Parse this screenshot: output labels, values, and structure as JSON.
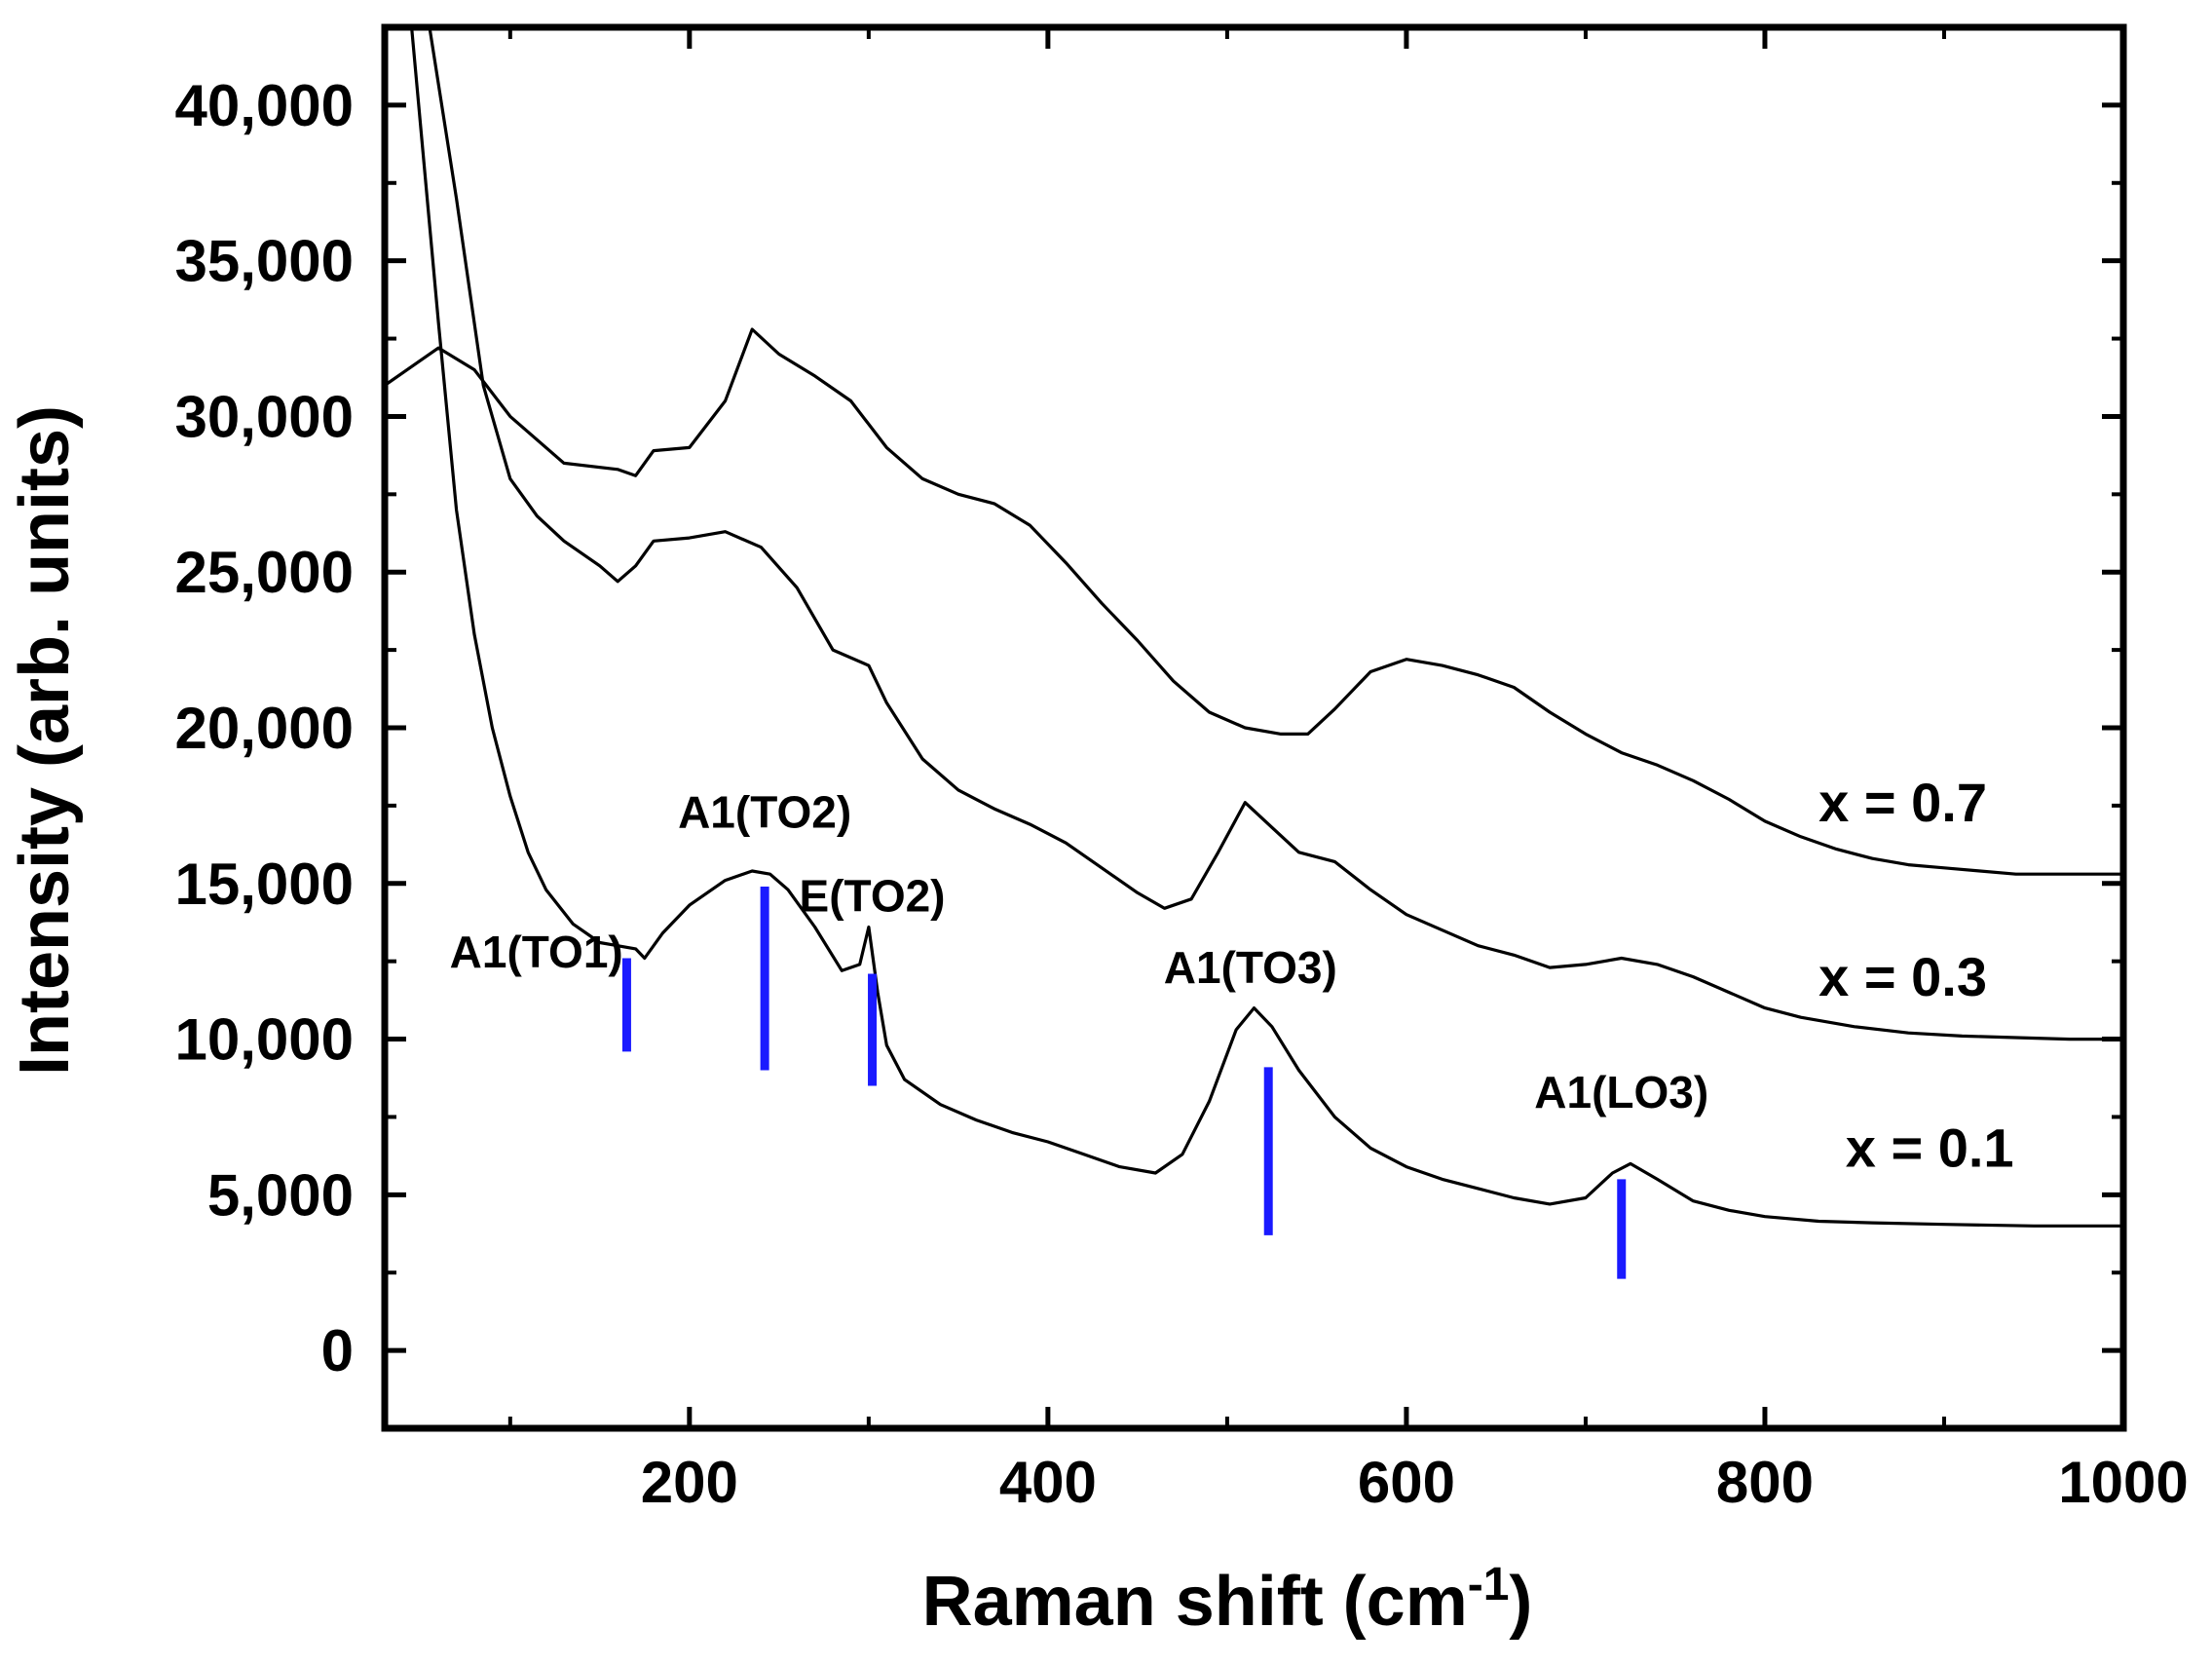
{
  "chart_data": {
    "type": "line",
    "title": "",
    "xlabel": "Raman shift (cm",
    "xlabel_sup": "-1",
    "xlabel_close": ")",
    "ylabel": "Intensity (arb. units)",
    "xlim": [
      30,
      1000
    ],
    "ylim": [
      -2500,
      42500
    ],
    "x_ticks": [
      {
        "value": 200,
        "label": "200"
      },
      {
        "value": 400,
        "label": "400"
      },
      {
        "value": 600,
        "label": "600"
      },
      {
        "value": 800,
        "label": "800"
      },
      {
        "value": 1000,
        "label": "1000"
      }
    ],
    "x_minor_ticks": [
      100,
      300,
      500,
      700,
      900
    ],
    "y_ticks": [
      {
        "value": 0,
        "label": "0"
      },
      {
        "value": 5000,
        "label": "5,000"
      },
      {
        "value": 10000,
        "label": "10,000"
      },
      {
        "value": 15000,
        "label": "15,000"
      },
      {
        "value": 20000,
        "label": "20,000"
      },
      {
        "value": 25000,
        "label": "25,000"
      },
      {
        "value": 30000,
        "label": "30,000"
      },
      {
        "value": 35000,
        "label": "35,000"
      },
      {
        "value": 40000,
        "label": "40,000"
      }
    ],
    "y_minor_ticks": [
      2500,
      7500,
      12500,
      17500,
      22500,
      27500,
      32500,
      37500
    ],
    "series": [
      {
        "name": "x = 0.7",
        "label_at": [
          830,
          17000
        ],
        "x": [
          30,
          60,
          80,
          100,
          130,
          160,
          170,
          180,
          200,
          220,
          235,
          250,
          270,
          290,
          310,
          330,
          350,
          370,
          390,
          410,
          430,
          450,
          470,
          490,
          510,
          530,
          545,
          560,
          580,
          600,
          620,
          640,
          660,
          680,
          700,
          720,
          740,
          760,
          780,
          800,
          820,
          840,
          860,
          880,
          900,
          920,
          940,
          960,
          980,
          1000
        ],
        "values": [
          31000,
          32200,
          31500,
          30000,
          28500,
          28300,
          28100,
          28900,
          29000,
          30500,
          32800,
          32000,
          31300,
          30500,
          29000,
          28000,
          27500,
          27200,
          26500,
          25300,
          24000,
          22800,
          21500,
          20500,
          20000,
          19800,
          19800,
          20600,
          21800,
          22200,
          22000,
          21700,
          21300,
          20500,
          19800,
          19200,
          18800,
          18300,
          17700,
          17000,
          16500,
          16100,
          15800,
          15600,
          15500,
          15400,
          15300,
          15300,
          15300,
          15300
        ]
      },
      {
        "name": "x = 0.3",
        "label_at": [
          830,
          11400
        ],
        "x": [
          55,
          70,
          85,
          100,
          115,
          130,
          150,
          160,
          170,
          180,
          200,
          220,
          240,
          260,
          280,
          300,
          310,
          330,
          350,
          370,
          390,
          410,
          430,
          450,
          465,
          480,
          495,
          510,
          525,
          540,
          560,
          580,
          600,
          620,
          640,
          660,
          680,
          700,
          720,
          740,
          760,
          780,
          800,
          820,
          850,
          880,
          910,
          940,
          970,
          1000
        ],
        "values": [
          42500,
          37000,
          31000,
          28000,
          26800,
          26000,
          25200,
          24700,
          25200,
          26000,
          26100,
          26300,
          25800,
          24500,
          22500,
          22000,
          20800,
          19000,
          18000,
          17400,
          16900,
          16300,
          15500,
          14700,
          14200,
          14500,
          16000,
          17600,
          16800,
          16000,
          15700,
          14800,
          14000,
          13500,
          13000,
          12700,
          12300,
          12400,
          12600,
          12400,
          12000,
          11500,
          11000,
          10700,
          10400,
          10200,
          10100,
          10050,
          10000,
          10000
        ]
      },
      {
        "name": "x = 0.1",
        "label_at": [
          845,
          5900
        ],
        "x": [
          45,
          60,
          70,
          80,
          90,
          100,
          110,
          120,
          135,
          150,
          160,
          170,
          175,
          185,
          200,
          220,
          235,
          245,
          255,
          270,
          285,
          295,
          300,
          305,
          310,
          320,
          340,
          360,
          380,
          400,
          420,
          440,
          460,
          475,
          490,
          505,
          515,
          525,
          540,
          560,
          580,
          600,
          620,
          640,
          660,
          680,
          700,
          715,
          725,
          740,
          760,
          780,
          800,
          830,
          860,
          900,
          950,
          1000
        ],
        "values": [
          42500,
          33000,
          27000,
          23000,
          20000,
          17800,
          16000,
          14800,
          13700,
          13100,
          13000,
          12900,
          12600,
          13400,
          14300,
          15100,
          15400,
          15300,
          14800,
          13600,
          12200,
          12400,
          13600,
          11500,
          9800,
          8700,
          7900,
          7400,
          7000,
          6700,
          6300,
          5900,
          5700,
          6300,
          8000,
          10300,
          11000,
          10400,
          9000,
          7500,
          6500,
          5900,
          5500,
          5200,
          4900,
          4700,
          4900,
          5700,
          6000,
          5500,
          4800,
          4500,
          4300,
          4150,
          4100,
          4050,
          4000,
          4000
        ]
      }
    ],
    "annotations": [
      {
        "text": "A1(TO1)",
        "x": 165,
        "y_start": 9600,
        "y_end": 12600,
        "text_anchor": "end",
        "text_at": [
          163,
          12300
        ]
      },
      {
        "text": "A1(TO2)",
        "x": 242,
        "y_start": 9000,
        "y_end": 14900,
        "text_anchor": "middle",
        "text_at": [
          242,
          16800
        ]
      },
      {
        "text": "E(TO2)",
        "x": 302,
        "y_start": 8500,
        "y_end": 12100,
        "text_anchor": "middle",
        "text_at": [
          302,
          14100
        ]
      },
      {
        "text": "A1(TO3)",
        "x": 523,
        "y_start": 3700,
        "y_end": 9100,
        "text_anchor": "middle",
        "text_at": [
          513,
          11800
        ]
      },
      {
        "text": "A1(LO3)",
        "x": 720,
        "y_start": 2300,
        "y_end": 5500,
        "text_anchor": "middle",
        "text_at": [
          720,
          7800
        ]
      }
    ],
    "marker_color": "#1a1aff",
    "line_color": "#000000",
    "grid": false
  }
}
